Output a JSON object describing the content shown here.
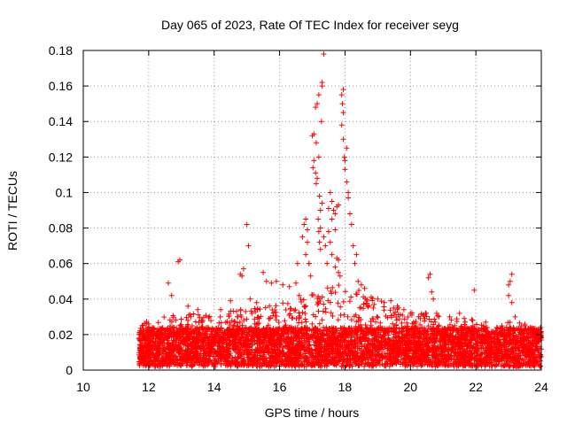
{
  "chart_data": {
    "type": "scatter",
    "title": "Day 065 of 2023, Rate Of TEC Index for receiver seyg",
    "xlabel": "GPS time / hours",
    "ylabel": "ROTI / TECUs",
    "xlim": [
      10,
      24
    ],
    "ylim": [
      0,
      0.18
    ],
    "xticks": [
      "10",
      "12",
      "14",
      "16",
      "18",
      "20",
      "22",
      "24"
    ],
    "yticks": [
      "0",
      "0.02",
      "0.04",
      "0.06",
      "0.08",
      "0.1",
      "0.12",
      "0.14",
      "0.16",
      "0.18"
    ],
    "grid": true,
    "marker": "+",
    "color": "#ff0000",
    "series": [
      {
        "points": [
          [
            11.8,
            0.025
          ],
          [
            12.9,
            0.061
          ],
          [
            12.95,
            0.062
          ],
          [
            12.6,
            0.049
          ],
          [
            12.7,
            0.042
          ],
          [
            13.2,
            0.036
          ],
          [
            13.5,
            0.034
          ],
          [
            14.2,
            0.034
          ],
          [
            14.5,
            0.039
          ],
          [
            14.8,
            0.054
          ],
          [
            14.85,
            0.053
          ],
          [
            14.9,
            0.057
          ],
          [
            15.0,
            0.082
          ],
          [
            15.05,
            0.07
          ],
          [
            15.1,
            0.04
          ],
          [
            15.3,
            0.038
          ],
          [
            15.5,
            0.055
          ],
          [
            15.6,
            0.05
          ],
          [
            15.75,
            0.049
          ],
          [
            15.9,
            0.05
          ],
          [
            16.1,
            0.048
          ],
          [
            16.3,
            0.047
          ],
          [
            16.5,
            0.049
          ],
          [
            16.55,
            0.06
          ],
          [
            16.6,
            0.042
          ],
          [
            16.7,
            0.075
          ],
          [
            16.75,
            0.082
          ],
          [
            16.8,
            0.085
          ],
          [
            16.85,
            0.079
          ],
          [
            16.9,
            0.06
          ],
          [
            16.95,
            0.053
          ],
          [
            16.8,
            0.065
          ],
          [
            16.85,
            0.072
          ],
          [
            16.9,
            0.06
          ],
          [
            17.0,
            0.132
          ],
          [
            17.05,
            0.133
          ],
          [
            17.02,
            0.114
          ],
          [
            17.05,
            0.118
          ],
          [
            17.1,
            0.111
          ],
          [
            17.12,
            0.105
          ],
          [
            17.15,
            0.108
          ],
          [
            17.1,
            0.148
          ],
          [
            17.15,
            0.15
          ],
          [
            17.2,
            0.155
          ],
          [
            17.12,
            0.128
          ],
          [
            17.2,
            0.12
          ],
          [
            17.22,
            0.098
          ],
          [
            17.25,
            0.09
          ],
          [
            17.18,
            0.085
          ],
          [
            17.2,
            0.078
          ],
          [
            17.25,
            0.08
          ],
          [
            17.22,
            0.072
          ],
          [
            17.25,
            0.068
          ],
          [
            17.3,
            0.162
          ],
          [
            17.35,
            0.178
          ],
          [
            17.28,
            0.14
          ],
          [
            17.3,
            0.16
          ],
          [
            17.3,
            0.094
          ],
          [
            17.35,
            0.075
          ],
          [
            17.4,
            0.07
          ],
          [
            17.45,
            0.06
          ],
          [
            17.5,
            0.091
          ],
          [
            17.55,
            0.1
          ],
          [
            17.6,
            0.095
          ],
          [
            17.65,
            0.09
          ],
          [
            17.6,
            0.085
          ],
          [
            17.5,
            0.078
          ],
          [
            17.55,
            0.072
          ],
          [
            17.6,
            0.065
          ],
          [
            17.7,
            0.088
          ],
          [
            17.75,
            0.092
          ],
          [
            17.8,
            0.093
          ],
          [
            17.7,
            0.079
          ],
          [
            17.75,
            0.063
          ],
          [
            17.8,
            0.062
          ],
          [
            17.7,
            0.058
          ],
          [
            17.8,
            0.055
          ],
          [
            17.85,
            0.053
          ],
          [
            17.9,
            0.155
          ],
          [
            17.95,
            0.158
          ],
          [
            17.92,
            0.15
          ],
          [
            17.95,
            0.145
          ],
          [
            17.9,
            0.138
          ],
          [
            17.95,
            0.13
          ],
          [
            17.98,
            0.12
          ],
          [
            18.0,
            0.118
          ],
          [
            18.05,
            0.125
          ],
          [
            18.0,
            0.113
          ],
          [
            18.05,
            0.106
          ],
          [
            18.1,
            0.1
          ],
          [
            18.1,
            0.097
          ],
          [
            18.15,
            0.088
          ],
          [
            18.2,
            0.082
          ],
          [
            18.25,
            0.07
          ],
          [
            18.3,
            0.06
          ],
          [
            18.35,
            0.065
          ],
          [
            18.4,
            0.05
          ],
          [
            18.5,
            0.048
          ],
          [
            18.6,
            0.046
          ],
          [
            18.8,
            0.041
          ],
          [
            19.0,
            0.04
          ],
          [
            19.2,
            0.038
          ],
          [
            19.4,
            0.039
          ],
          [
            19.6,
            0.036
          ],
          [
            19.8,
            0.034
          ],
          [
            20.0,
            0.032
          ],
          [
            20.3,
            0.029
          ],
          [
            20.55,
            0.052
          ],
          [
            20.6,
            0.054
          ],
          [
            20.65,
            0.044
          ],
          [
            20.7,
            0.04
          ],
          [
            20.8,
            0.032
          ],
          [
            21.2,
            0.03
          ],
          [
            21.5,
            0.032
          ],
          [
            21.9,
            0.028
          ],
          [
            21.95,
            0.045
          ],
          [
            22.3,
            0.027
          ],
          [
            22.6,
            0.022
          ],
          [
            23.0,
            0.048
          ],
          [
            23.05,
            0.05
          ],
          [
            23.1,
            0.054
          ],
          [
            23.0,
            0.042
          ],
          [
            23.1,
            0.038
          ],
          [
            23.2,
            0.03
          ],
          [
            23.5,
            0.025
          ],
          [
            23.8,
            0.022
          ],
          [
            23.95,
            0.017
          ]
        ],
        "band": {
          "description": "dense cloud of points between 11.7 and 24 hours",
          "base_range": [
            0.002,
            0.024
          ],
          "upper_envelope": [
            [
              11.7,
              0.026
            ],
            [
              12.0,
              0.028
            ],
            [
              12.5,
              0.03
            ],
            [
              13.0,
              0.032
            ],
            [
              13.5,
              0.032
            ],
            [
              14.0,
              0.033
            ],
            [
              14.5,
              0.034
            ],
            [
              15.0,
              0.034
            ],
            [
              15.5,
              0.036
            ],
            [
              16.0,
              0.038
            ],
            [
              16.5,
              0.04
            ],
            [
              17.0,
              0.045
            ],
            [
              17.5,
              0.048
            ],
            [
              18.0,
              0.048
            ],
            [
              18.5,
              0.045
            ],
            [
              19.0,
              0.04
            ],
            [
              19.5,
              0.036
            ],
            [
              20.0,
              0.034
            ],
            [
              20.5,
              0.032
            ],
            [
              21.0,
              0.03
            ],
            [
              21.5,
              0.03
            ],
            [
              22.0,
              0.028
            ],
            [
              22.5,
              0.022
            ],
            [
              23.0,
              0.028
            ],
            [
              23.5,
              0.026
            ],
            [
              24.0,
              0.022
            ]
          ]
        }
      }
    ]
  }
}
